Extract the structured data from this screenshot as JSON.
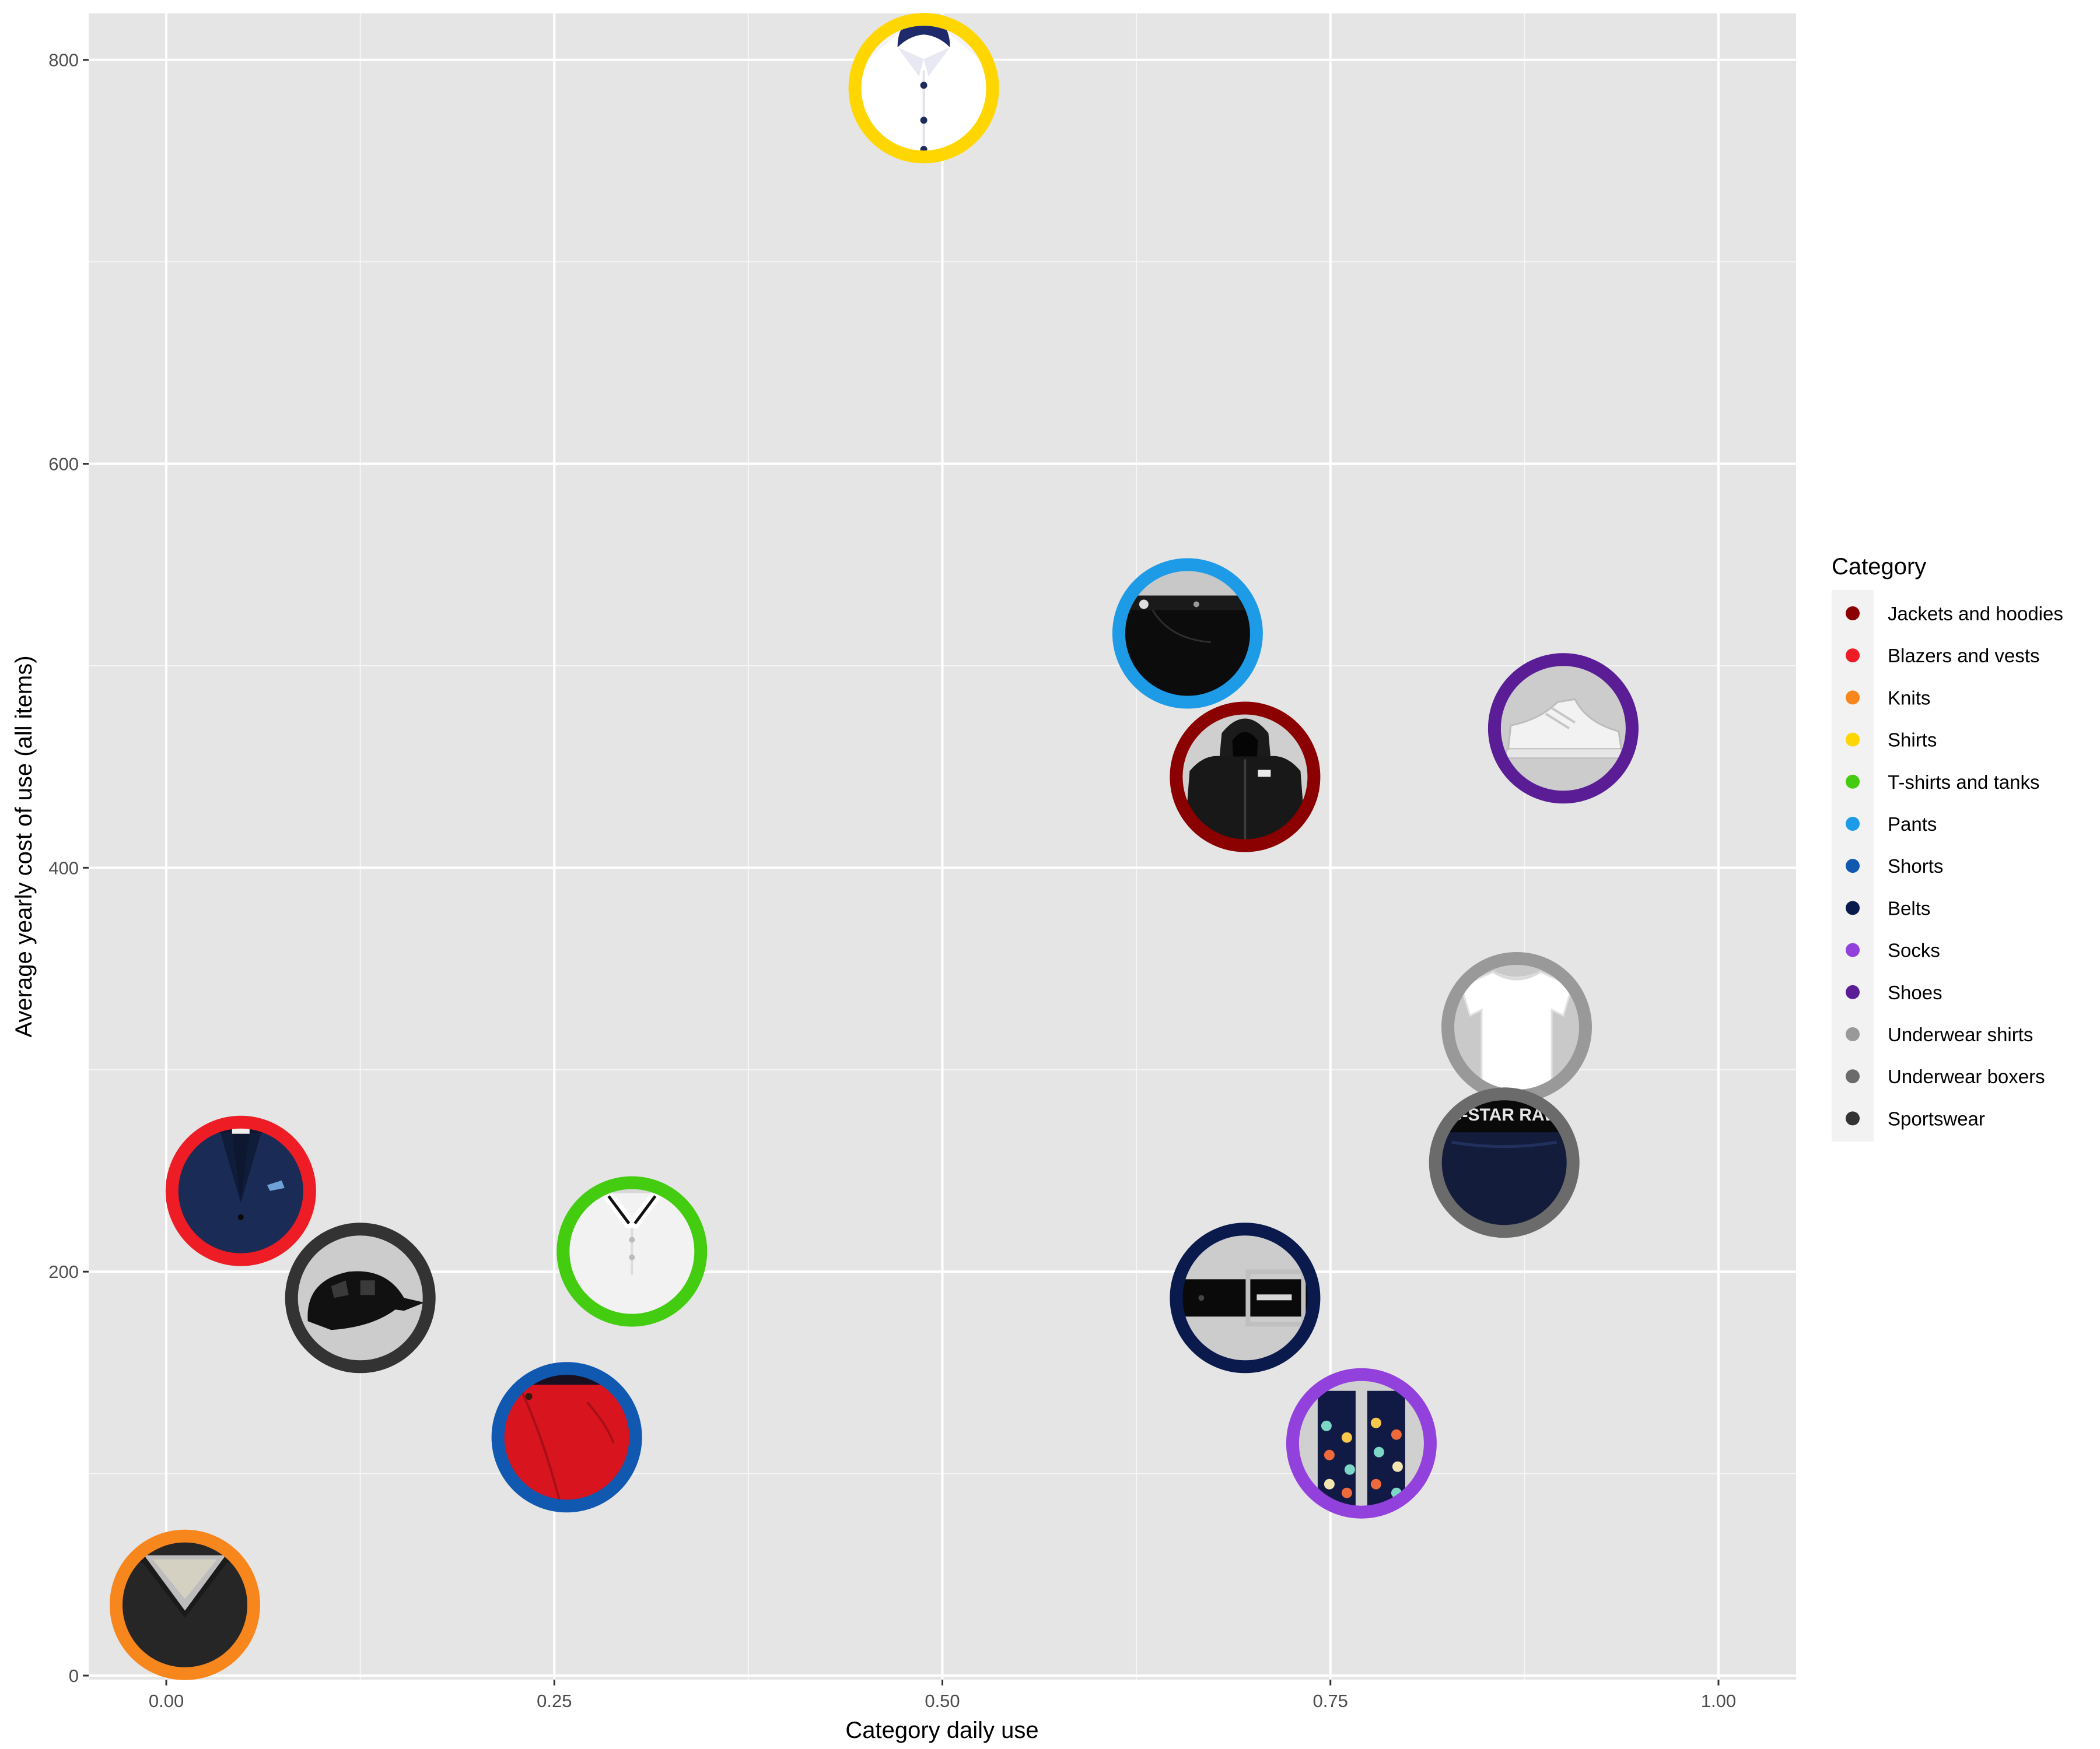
{
  "chart_data": {
    "type": "scatter",
    "xlabel": "Category daily use",
    "ylabel": "Average yearly cost of use (all items)",
    "xlim": [
      -0.05,
      1.05
    ],
    "ylim": [
      -2,
      823
    ],
    "x_ticks": [
      0,
      0.25,
      0.5,
      0.75,
      1
    ],
    "x_tick_labels": [
      "0.00",
      "0.25",
      "0.50",
      "0.75",
      "1.00"
    ],
    "y_ticks": [
      0,
      200,
      400,
      600,
      800
    ],
    "y_tick_labels": [
      "0",
      "200",
      "400",
      "600",
      "800"
    ],
    "grid": true,
    "legend": {
      "title": "Category",
      "position": "right",
      "entries": [
        {
          "label": "Jackets and hoodies",
          "color": "#8B0000"
        },
        {
          "label": "Blazers and vests",
          "color": "#EE1C25"
        },
        {
          "label": "Knits",
          "color": "#F7861C"
        },
        {
          "label": "Shirts",
          "color": "#FFD600"
        },
        {
          "label": "T-shirts and tanks",
          "color": "#44CC11"
        },
        {
          "label": "Pants",
          "color": "#1E9BE6"
        },
        {
          "label": "Shorts",
          "color": "#1058B0"
        },
        {
          "label": "Belts",
          "color": "#0B1A4D"
        },
        {
          "label": "Socks",
          "color": "#9341DD"
        },
        {
          "label": "Shoes",
          "color": "#5A1D96"
        },
        {
          "label": "Underwear shirts",
          "color": "#999999"
        },
        {
          "label": "Underwear boxers",
          "color": "#6B6B6B"
        },
        {
          "label": "Sportswear",
          "color": "#333333"
        }
      ]
    },
    "points": [
      {
        "category": "Jackets and hoodies",
        "x": 0.695,
        "y": 445,
        "icon": "hoodie-icon"
      },
      {
        "category": "Blazers and vests",
        "x": 0.048,
        "y": 240,
        "icon": "blazer-icon"
      },
      {
        "category": "Knits",
        "x": 0.012,
        "y": 35,
        "icon": "knit-sweater-icon"
      },
      {
        "category": "Shirts",
        "x": 0.488,
        "y": 786,
        "icon": "dress-shirt-icon"
      },
      {
        "category": "T-shirts and tanks",
        "x": 0.3,
        "y": 210,
        "icon": "polo-shirt-icon"
      },
      {
        "category": "Pants",
        "x": 0.658,
        "y": 516,
        "icon": "jeans-icon"
      },
      {
        "category": "Shorts",
        "x": 0.258,
        "y": 118,
        "icon": "shorts-icon"
      },
      {
        "category": "Belts",
        "x": 0.695,
        "y": 187,
        "icon": "belt-icon"
      },
      {
        "category": "Socks",
        "x": 0.77,
        "y": 115,
        "icon": "socks-icon"
      },
      {
        "category": "Shoes",
        "x": 0.9,
        "y": 469,
        "icon": "sneaker-icon"
      },
      {
        "category": "Underwear shirts",
        "x": 0.87,
        "y": 321,
        "icon": "undershirt-icon"
      },
      {
        "category": "Underwear boxers",
        "x": 0.862,
        "y": 254,
        "icon": "boxers-icon",
        "icon_text": "G-STAR RAW"
      },
      {
        "category": "Sportswear",
        "x": 0.125,
        "y": 187,
        "icon": "bike-helmet-icon"
      }
    ]
  }
}
